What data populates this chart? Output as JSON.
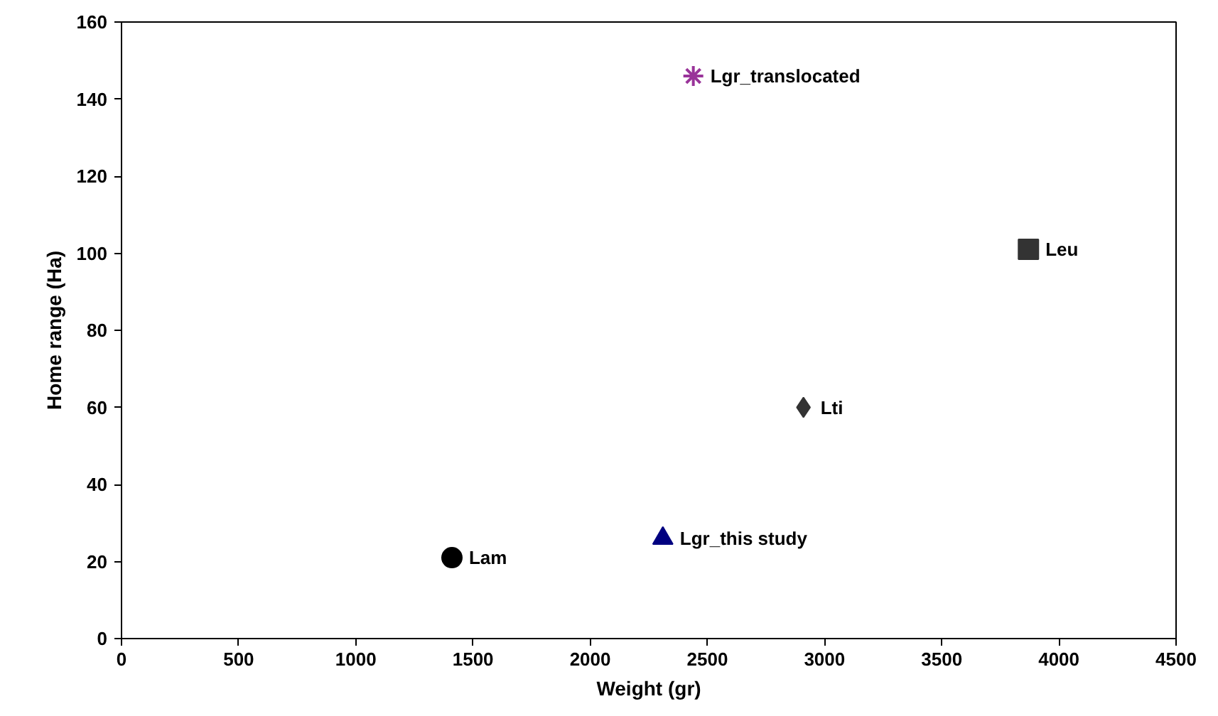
{
  "chart_data": {
    "type": "scatter",
    "xlabel": "Weight (gr)",
    "ylabel": "Home range (Ha)",
    "xlim": [
      0,
      4500
    ],
    "xticks": [
      0,
      500,
      1000,
      1500,
      2000,
      2500,
      3000,
      3500,
      4000,
      4500
    ],
    "ylim": [
      0,
      160
    ],
    "yticks": [
      0,
      20,
      40,
      60,
      80,
      100,
      120,
      140,
      160
    ],
    "grid": false,
    "legend": false,
    "series": [
      {
        "name": "Lam",
        "color": "#000000",
        "marker": "circle",
        "x": [
          1410
        ],
        "values": [
          21
        ]
      },
      {
        "name": "Lgr_this study",
        "color": "#000080",
        "marker": "triangle",
        "x": [
          2310
        ],
        "values": [
          26
        ]
      },
      {
        "name": "Lti",
        "color": "#333333",
        "marker": "diamond",
        "x": [
          2910
        ],
        "values": [
          60
        ]
      },
      {
        "name": "Lgr_translocated",
        "color": "#993399",
        "marker": "cross",
        "x": [
          2440
        ],
        "values": [
          146
        ]
      },
      {
        "name": "Leu",
        "color": "#333333",
        "marker": "square",
        "x": [
          3870
        ],
        "values": [
          101
        ]
      }
    ]
  }
}
